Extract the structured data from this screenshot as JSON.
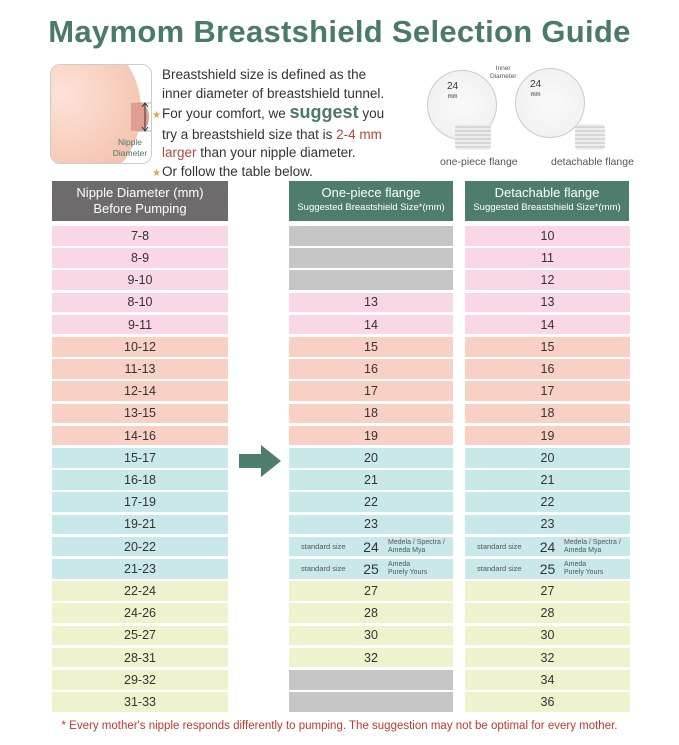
{
  "title": "Maymom Breastshield Selection Guide",
  "illustration": {
    "label_line1": "Nipple",
    "label_line2": "Diameter"
  },
  "description": {
    "line1": "Breastshield size is defined as the",
    "line2": "inner diameter of breastshield tunnel.",
    "bullet1_pre": "For your comfort, we ",
    "bullet1_emph": "suggest",
    "bullet1_post": " you",
    "bullet1_line2_pre": "try a breastshield size that is ",
    "bullet1_highlight1": "2-4 mm",
    "bullet1_highlight2": "larger",
    "bullet1_line3_post": " than your nipple diameter.",
    "bullet2": "Or follow the table below.",
    "star_icon": "★"
  },
  "flange_diagram": {
    "inner_diameter_line1": "Inner",
    "inner_diameter_line2": "Diameter",
    "size": "24",
    "unit": "mm",
    "one_piece_caption": "one-piece flange",
    "detachable_caption": "detachable flange"
  },
  "table": {
    "headers": {
      "nipple_line1": "Nipple Diameter (mm)",
      "nipple_line2": "Before Pumping",
      "one_piece_title": "One-piece flange",
      "one_piece_sub": "Suggested Breastshield Size*(mm)",
      "detachable_title": "Detachable flange",
      "detachable_sub": "Suggested Breastshield Size*(mm)"
    },
    "colors": {
      "pink": "#f9d7e6",
      "salmon": "#f9d0c4",
      "teal": "#c9e8ea",
      "yellow": "#eef2cd",
      "gray": "#c6c6c6",
      "header_gray": "#6d6b6b",
      "header_green": "#4e7d6d",
      "title_green": "#4a7a68"
    },
    "rows": [
      {
        "nipple": "7-8",
        "one_piece": "",
        "detachable": "10",
        "color": "pink"
      },
      {
        "nipple": "8-9",
        "one_piece": "",
        "detachable": "11",
        "color": "pink"
      },
      {
        "nipple": "9-10",
        "one_piece": "",
        "detachable": "12",
        "color": "pink"
      },
      {
        "nipple": "8-10",
        "one_piece": "13",
        "detachable": "13",
        "color": "pink"
      },
      {
        "nipple": "9-11",
        "one_piece": "14",
        "detachable": "14",
        "color": "pink"
      },
      {
        "nipple": "10-12",
        "one_piece": "15",
        "detachable": "15",
        "color": "salmon"
      },
      {
        "nipple": "11-13",
        "one_piece": "16",
        "detachable": "16",
        "color": "salmon"
      },
      {
        "nipple": "12-14",
        "one_piece": "17",
        "detachable": "17",
        "color": "salmon"
      },
      {
        "nipple": "13-15",
        "one_piece": "18",
        "detachable": "18",
        "color": "salmon"
      },
      {
        "nipple": "14-16",
        "one_piece": "19",
        "detachable": "19",
        "color": "salmon"
      },
      {
        "nipple": "15-17",
        "one_piece": "20",
        "detachable": "20",
        "color": "teal"
      },
      {
        "nipple": "16-18",
        "one_piece": "21",
        "detachable": "21",
        "color": "teal"
      },
      {
        "nipple": "17-19",
        "one_piece": "22",
        "detachable": "22",
        "color": "teal"
      },
      {
        "nipple": "19-21",
        "one_piece": "23",
        "detachable": "23",
        "color": "teal"
      },
      {
        "nipple": "20-22",
        "one_piece": "24",
        "detachable": "24",
        "color": "teal",
        "standard": "standard size",
        "brand_line1": "Medela / Spectra /",
        "brand_line2": "Ameda Mya"
      },
      {
        "nipple": "21-23",
        "one_piece": "25",
        "detachable": "25",
        "color": "teal",
        "standard": "standard size",
        "brand_line1": "Ameda",
        "brand_line2": "Purely Yours"
      },
      {
        "nipple": "22-24",
        "one_piece": "27",
        "detachable": "27",
        "color": "yellow"
      },
      {
        "nipple": "24-26",
        "one_piece": "28",
        "detachable": "28",
        "color": "yellow"
      },
      {
        "nipple": "25-27",
        "one_piece": "30",
        "detachable": "30",
        "color": "yellow"
      },
      {
        "nipple": "28-31",
        "one_piece": "32",
        "detachable": "32",
        "color": "yellow"
      },
      {
        "nipple": "29-32",
        "one_piece": "",
        "detachable": "34",
        "color": "yellow"
      },
      {
        "nipple": "31-33",
        "one_piece": "",
        "detachable": "36",
        "color": "yellow"
      }
    ]
  },
  "footnote": {
    "star": "*",
    "text": " Every mother's nipple responds differently to pumping. The suggestion may not be optimal for every mother."
  }
}
